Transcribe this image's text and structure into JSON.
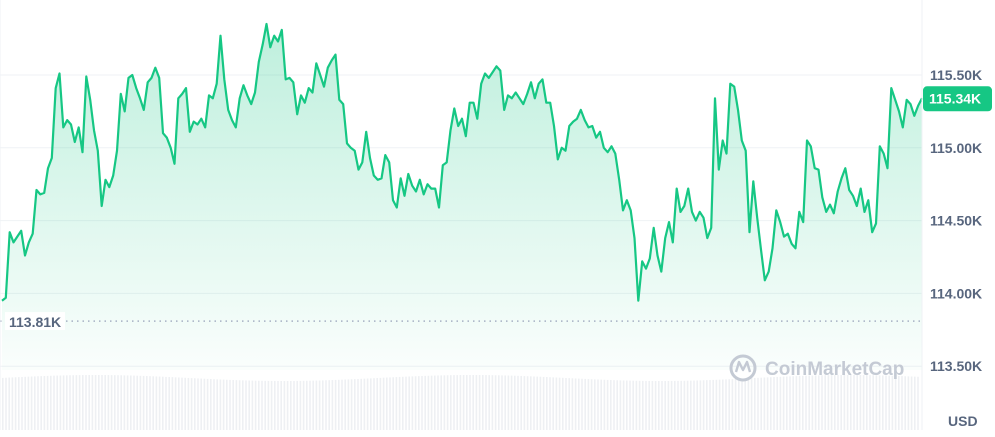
{
  "chart_data": {
    "type": "area",
    "title": "",
    "xlabel": "",
    "ylabel": "",
    "currency_unit": "USD",
    "y_ticks": [
      "115.50K",
      "115.00K",
      "114.50K",
      "114.00K",
      "113.50K"
    ],
    "y_tick_values": [
      115.5,
      115.0,
      114.5,
      114.0,
      113.5
    ],
    "ylim": [
      113.5,
      115.95
    ],
    "y_units": "thousand USD",
    "grid": true,
    "line_color": "#16c784",
    "current_price": {
      "label": "115.34K",
      "value": 115.34,
      "color": "#16c784"
    },
    "reference_line": {
      "label": "113.81K",
      "value": 113.81,
      "style": "dotted"
    },
    "watermark": "CoinMarketCap",
    "series": [
      {
        "values": [
          113.95,
          113.97,
          114.42,
          114.35,
          114.39,
          114.43,
          114.26,
          114.35,
          114.41,
          114.71,
          114.68,
          114.69,
          114.86,
          114.93,
          115.41,
          115.51,
          115.14,
          115.19,
          115.16,
          115.04,
          115.14,
          114.97,
          115.49,
          115.33,
          115.12,
          114.98,
          114.6,
          114.78,
          114.73,
          114.81,
          114.98,
          115.37,
          115.25,
          115.48,
          115.5,
          115.41,
          115.34,
          115.26,
          115.45,
          115.48,
          115.55,
          115.48,
          115.1,
          115.07,
          115.0,
          114.89,
          115.34,
          115.37,
          115.41,
          115.11,
          115.18,
          115.16,
          115.2,
          115.14,
          115.36,
          115.34,
          115.44,
          115.77,
          115.47,
          115.26,
          115.19,
          115.14,
          115.34,
          115.43,
          115.36,
          115.3,
          115.38,
          115.59,
          115.71,
          115.85,
          115.69,
          115.77,
          115.73,
          115.81,
          115.47,
          115.48,
          115.45,
          115.23,
          115.36,
          115.31,
          115.41,
          115.38,
          115.58,
          115.5,
          115.42,
          115.55,
          115.6,
          115.64,
          115.33,
          115.3,
          115.03,
          115.0,
          114.98,
          114.85,
          114.9,
          115.11,
          114.93,
          114.81,
          114.78,
          114.79,
          114.95,
          114.9,
          114.64,
          114.59,
          114.79,
          114.67,
          114.82,
          114.74,
          114.7,
          114.78,
          114.68,
          114.75,
          114.72,
          114.72,
          114.59,
          114.88,
          114.9,
          115.12,
          115.27,
          115.15,
          115.2,
          115.08,
          115.31,
          115.31,
          115.2,
          115.44,
          115.51,
          115.48,
          115.52,
          115.56,
          115.53,
          115.26,
          115.36,
          115.34,
          115.38,
          115.34,
          115.3,
          115.37,
          115.45,
          115.34,
          115.44,
          115.47,
          115.31,
          115.31,
          115.15,
          114.92,
          115.0,
          114.98,
          115.15,
          115.18,
          115.2,
          115.26,
          115.19,
          115.14,
          115.15,
          115.07,
          115.11,
          115.0,
          114.97,
          115.01,
          114.96,
          114.78,
          114.57,
          114.64,
          114.57,
          114.38,
          113.95,
          114.22,
          114.17,
          114.24,
          114.45,
          114.26,
          114.15,
          114.38,
          114.49,
          114.35,
          114.72,
          114.56,
          114.6,
          114.72,
          114.56,
          114.5,
          114.56,
          114.52,
          114.38,
          114.45,
          115.34,
          114.85,
          115.05,
          114.96,
          115.44,
          115.42,
          115.26,
          115.05,
          114.98,
          114.42,
          114.77,
          114.52,
          114.3,
          114.09,
          114.15,
          114.31,
          114.57,
          114.49,
          114.39,
          114.41,
          114.34,
          114.31,
          114.56,
          114.49,
          115.05,
          115.01,
          114.86,
          114.85,
          114.66,
          114.56,
          114.61,
          114.55,
          114.7,
          114.79,
          114.86,
          114.71,
          114.67,
          114.6,
          114.72,
          114.56,
          114.64,
          114.42,
          114.48,
          115.01,
          114.96,
          114.86,
          115.41,
          115.33,
          115.25,
          115.14,
          115.33,
          115.3,
          115.22,
          115.29,
          115.34
        ]
      }
    ]
  }
}
